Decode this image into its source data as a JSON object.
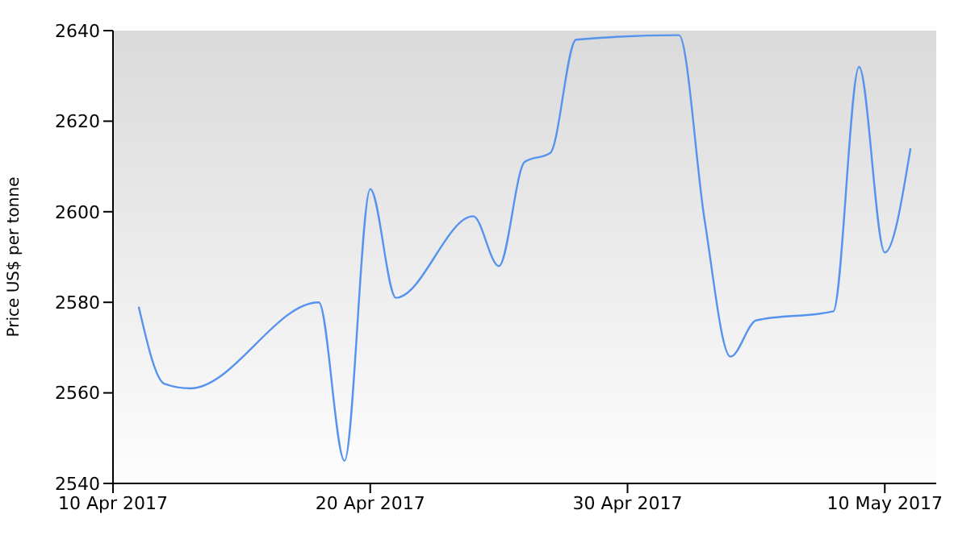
{
  "chart_data": {
    "type": "line",
    "ylabel": "Price US$ per tonne",
    "x": [
      "2017-04-11",
      "2017-04-12",
      "2017-04-13",
      "2017-04-18",
      "2017-04-19",
      "2017-04-20",
      "2017-04-21",
      "2017-04-24",
      "2017-04-25",
      "2017-04-26",
      "2017-04-27",
      "2017-04-28",
      "2017-05-02",
      "2017-05-03",
      "2017-05-04",
      "2017-05-05",
      "2017-05-08",
      "2017-05-09",
      "2017-05-10",
      "2017-05-11"
    ],
    "series": [
      {
        "color": "#5593ee",
        "values": [
          2579,
          2562,
          2561,
          2580,
          2545,
          2605,
          2581,
          2599,
          2588,
          2611,
          2613,
          2638,
          2639,
          2598,
          2568,
          2576,
          2578,
          2632,
          2591,
          2614
        ]
      }
    ],
    "xlim": [
      "2017-04-10",
      "2017-05-12"
    ],
    "xticks": [
      {
        "value": "2017-04-10",
        "label": "10 Apr 2017"
      },
      {
        "value": "2017-04-20",
        "label": "20 Apr 2017"
      },
      {
        "value": "2017-04-30",
        "label": "30 Apr 2017"
      },
      {
        "value": "2017-05-10",
        "label": "10 May 2017"
      }
    ],
    "ylim": [
      2540,
      2640
    ],
    "yticks": [
      2540,
      2560,
      2580,
      2600,
      2620,
      2640
    ],
    "grid": false,
    "legend": false,
    "marker": "none",
    "line_style": "solid"
  }
}
